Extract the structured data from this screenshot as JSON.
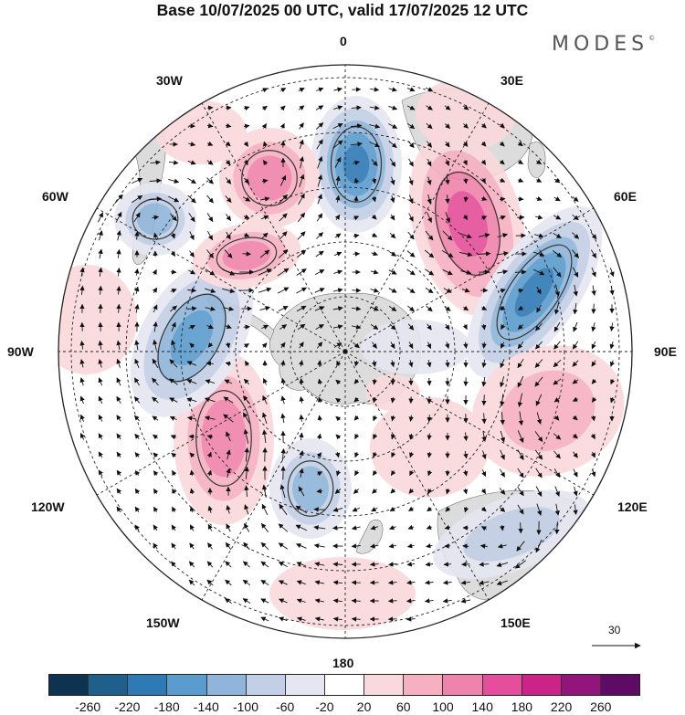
{
  "title": "Base 10/07/2025 00 UTC, valid 17/07/2025 12 UTC",
  "brand": "MODES",
  "brand_mark": "©",
  "longitude_labels": {
    "lon_0": "0",
    "lon_30e": "30E",
    "lon_60e": "60E",
    "lon_90e": "90E",
    "lon_120e": "120E",
    "lon_150e": "150E",
    "lon_180": "180",
    "lon_150w": "150W",
    "lon_120w": "120W",
    "lon_90w": "90W",
    "lon_60w": "60W",
    "lon_30w": "30W"
  },
  "reference_vector_label": "30",
  "colorbar": {
    "ticks": [
      "-260",
      "-220",
      "-180",
      "-140",
      "-100",
      "-60",
      "-20",
      "20",
      "60",
      "100",
      "140",
      "180",
      "220",
      "260"
    ],
    "colors": [
      "#0d3350",
      "#1f5f8c",
      "#2f7ab5",
      "#5a9ccd",
      "#8fb5da",
      "#c3cfe6",
      "#e6e6f2",
      "#ffffff",
      "#fad9dc",
      "#f6b1c1",
      "#f083ab",
      "#e54e9a",
      "#cc2389",
      "#91157b",
      "#5e0b66"
    ]
  },
  "colors": {
    "land": "#dcdcdc",
    "grid": "#222222",
    "arrow": "#111111"
  }
}
